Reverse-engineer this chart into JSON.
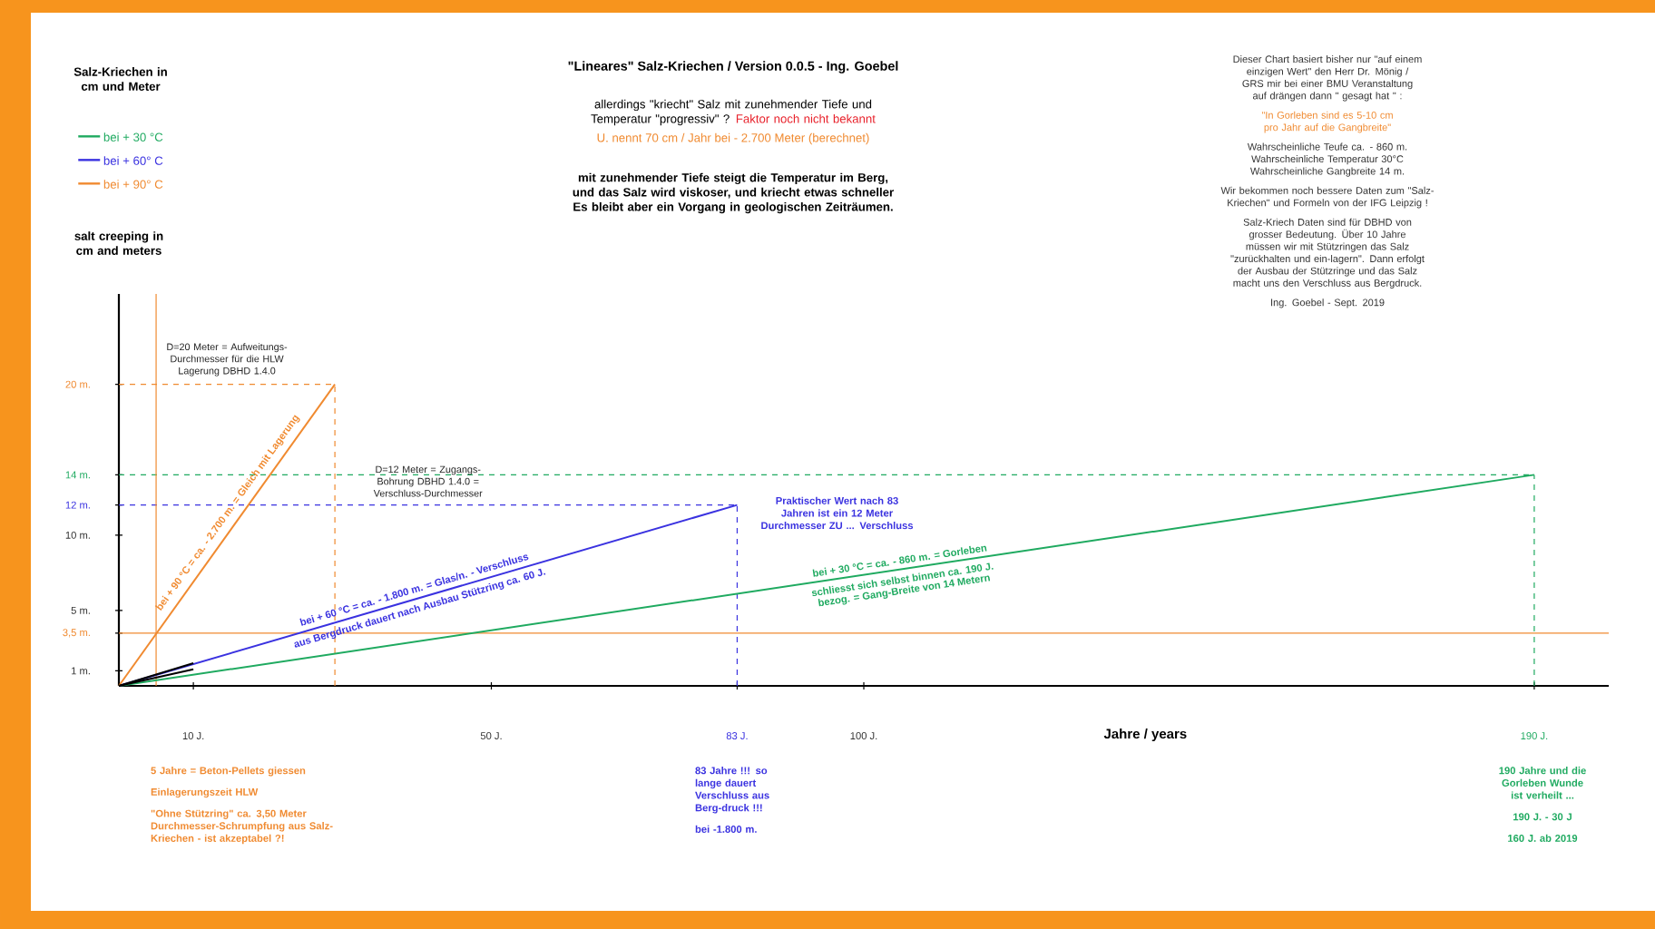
{
  "chart_data": {
    "type": "line",
    "title": "\"Lineares\" Salz-Kriechen / Version 0.0.5 - Ing. Goebel",
    "subtitle": "allerdings \"kriecht\" Salz mit zunehmender Tiefe und Temperatur \"progressiv\" ?",
    "xlabel": "Jahre / years",
    "ylabel": "salt creeping in cm and meters",
    "xlim": [
      0,
      200
    ],
    "ylim": [
      0,
      26
    ],
    "xticks": [
      {
        "value": 10,
        "label": "10 J."
      },
      {
        "value": 50,
        "label": "50 J."
      },
      {
        "value": 83,
        "label": "83 J."
      },
      {
        "value": 100,
        "label": "100 J."
      },
      {
        "value": 190,
        "label": "190 J."
      }
    ],
    "yticks": [
      {
        "value": 1,
        "label": "1 m."
      },
      {
        "value": 3.5,
        "label": "3,5 m."
      },
      {
        "value": 5,
        "label": "5 m."
      },
      {
        "value": 10,
        "label": "10 m."
      },
      {
        "value": 12,
        "label": "12 m."
      },
      {
        "value": 14,
        "label": "14 m."
      },
      {
        "value": 20,
        "label": "20 m."
      }
    ],
    "marker": "none",
    "line_style": "solid",
    "legend": "top left",
    "series": [
      {
        "name": "bei + 30 °C",
        "color": "#1faa60",
        "x": [
          0,
          190
        ],
        "values": [
          0,
          14
        ]
      },
      {
        "name": "bei + 60° C",
        "color": "#3a32e0",
        "x": [
          0,
          83
        ],
        "values": [
          0,
          12
        ]
      },
      {
        "name": "bei + 90° C",
        "color": "#f08a30",
        "x": [
          0,
          29
        ],
        "values": [
          0,
          20
        ]
      },
      {
        "color": "#000000",
        "x": [
          0,
          10
        ],
        "values": [
          0,
          1.5
        ]
      },
      {
        "color": "#000000",
        "x": [
          0,
          10
        ],
        "values": [
          0,
          1.1
        ]
      }
    ],
    "ref_lines": [
      {
        "axis": "y",
        "value": 20,
        "label": "D=20 Meter = Aufweitungs-Durchmesser für die HLW Lagerung DBHD 1.4.0",
        "color": "#f08a30",
        "line_style": "dashed"
      },
      {
        "axis": "y",
        "value": 14,
        "color": "#1faa60",
        "line_style": "dashed"
      },
      {
        "axis": "y",
        "value": 12,
        "label": "D=12 Meter = Zugangs-Bohrung DBHD 1.4.0 = Verschluss-Durchmesser",
        "color": "#3a32e0",
        "line_style": "dashed"
      },
      {
        "axis": "y",
        "value": 3.5,
        "color": "#f08a30",
        "line_style": "solid"
      },
      {
        "axis": "x",
        "value": 29,
        "color": "#f08a30",
        "line_style": "dashed"
      },
      {
        "axis": "x",
        "value": 83,
        "color": "#3a32e0",
        "line_style": "dashed"
      },
      {
        "axis": "x",
        "value": 190,
        "color": "#1faa60",
        "line_style": "dashed"
      },
      {
        "axis": "x",
        "value": 5,
        "color": "#f08a30",
        "line_style": "solid"
      }
    ],
    "annotations": [
      "Salz-Kriechen in cm und Meter",
      "Faktor noch nicht bekannt",
      "U. nennt 70 cm / Jahr bei - 2.700 Meter (berechnet)",
      "mit zunehmender Tiefe steigt die Temperatur im Berg, und das Salz wird viskoser, und kriecht etwas schneller Es bleibt aber ein Vorgang in geologischen Zeiträumen.",
      "Dieser Chart basiert bisher nur \"auf einem einzigen Wert\" den Herr Dr. Mönig / GRS mir bei einer BMU Veranstaltung auf drängen dann \" gesagt hat \" :",
      "\"In Gorleben sind es 5-10 cm pro Jahr auf die Gangbreite\"",
      "Wahrscheinliche Teufe ca. - 860 m. Wahrscheinliche Temperatur 30°C Wahrscheinliche Gangbreite 14 m.",
      "Wir bekommen noch bessere Daten zum \"Salz-Kriechen\" und Formeln von der IFG Leipzig !",
      "Salz-Kriech Daten sind für DBHD von grosser Bedeutung. Über 10 Jahre müssen wir mit Stützringen das Salz \"zurückhalten und ein-lagern\". Dann erfolgt der Ausbau der Stützringe und das Salz macht uns den Verschluss aus Bergdruck.",
      "Ing. Goebel - Sept. 2019",
      {
        "text": "bei + 90 °C = ca. - 2.700 m. = Gleich mit Lagerung",
        "x": 16,
        "y": 11
      },
      {
        "text": "bei + 60 °C = ca. - 1.800 m. = Glas/n. - Verschluss",
        "x": 40,
        "y": 5.8
      },
      {
        "text": "aus Bergdruck dauert nach Ausbau Stützring ca. 60 J.",
        "x": 40,
        "y": 5.8
      },
      {
        "text": "bei + 30 °C = ca. - 860 m. = Gorleben",
        "x": 105,
        "y": 7.7
      },
      {
        "text": "schliesst sich selbst binnen ca. 190 J.",
        "x": 105,
        "y": 7.7
      },
      {
        "text": "bezog. = Gang-Breite von 14 Metern",
        "x": 105,
        "y": 7.7
      },
      {
        "text": "Praktischer Wert nach 83 Jahren ist ein 12 Meter Durchmesser ZU ... Verschluss",
        "x": 83,
        "y": 12
      },
      "5 Jahre = Beton-Pellets giessen",
      "Einlagerungszeit HLW",
      "\"Ohne Stützring\" ca. 3,50 Meter Durchmesser-Schrumpfung aus Salz-Kriechen - ist akzeptabel ?!",
      "83 Jahre !!! so lange dauert Verschluss aus Berg-druck !!!",
      "bei -1.800 m.",
      "190 Jahre und die Gorleben Wunde ist verheilt ...",
      "190 J. - 30 J",
      "160 J. ab 2019"
    ]
  }
}
